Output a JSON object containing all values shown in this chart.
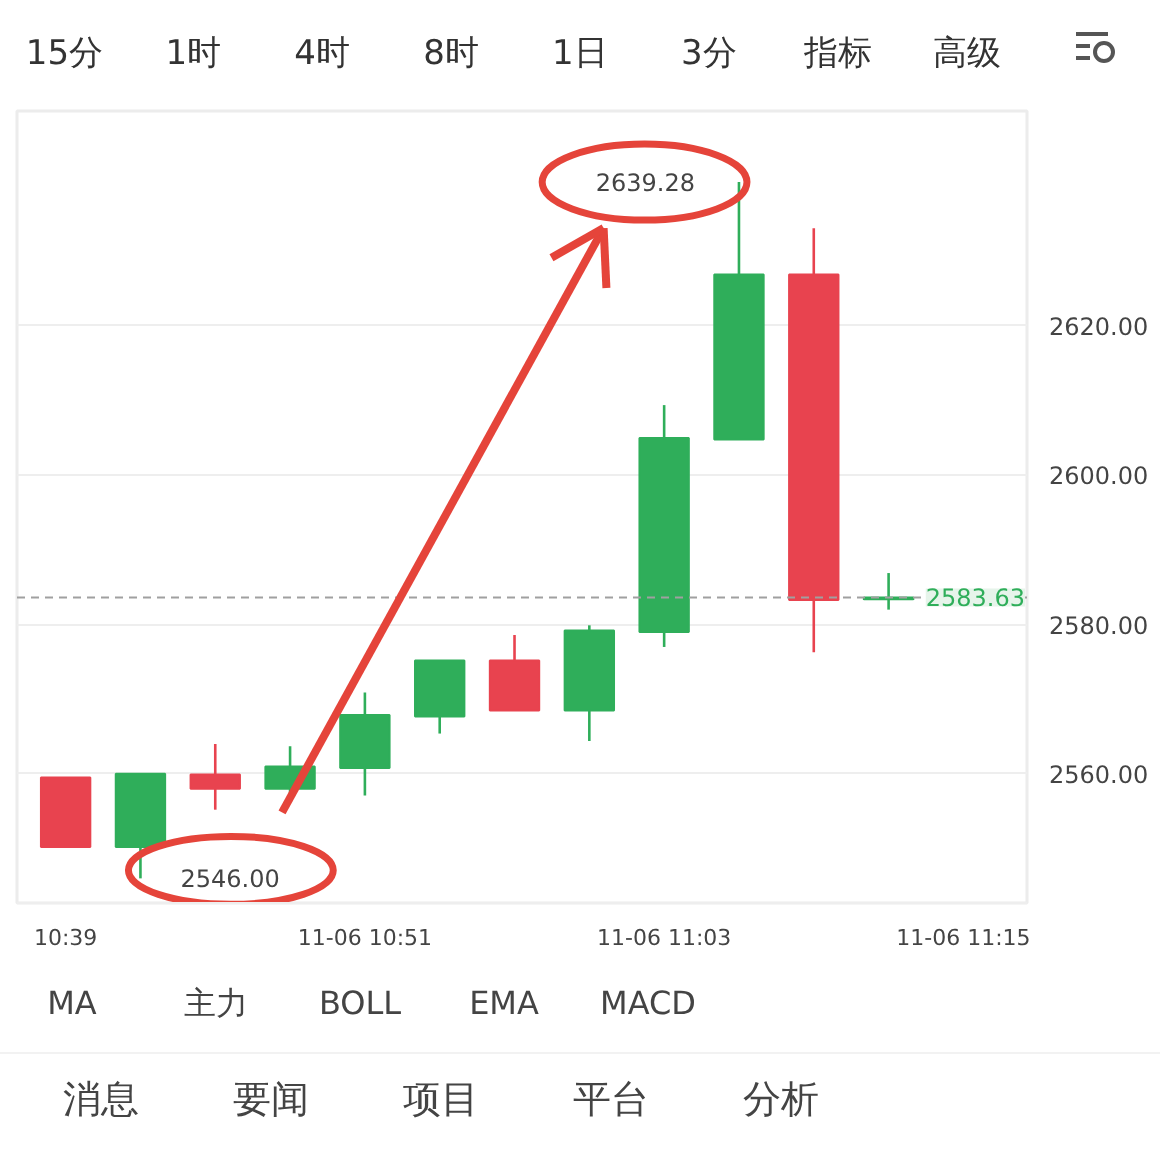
{
  "chart_data": {
    "type": "candlestick",
    "categories": [
      "10:39",
      null,
      null,
      null,
      "11-06 10:51",
      null,
      null,
      null,
      "11-06 11:03",
      null,
      null,
      null,
      "11-06 11:15"
    ],
    "ohlc": [
      [
        2559.5,
        2559.5,
        2550.2,
        2550.2
      ],
      [
        2550.2,
        2560.0,
        2546.0,
        2560.0
      ],
      [
        2559.9,
        2564.0,
        2555.2,
        2558.0
      ],
      [
        2558.0,
        2563.7,
        2557.1,
        2561.0
      ],
      [
        2560.8,
        2570.9,
        2557.1,
        2567.9
      ],
      [
        2567.7,
        2575.2,
        2565.4,
        2575.2
      ],
      [
        2575.2,
        2578.6,
        2568.5,
        2568.5
      ],
      [
        2568.5,
        2579.9,
        2564.4,
        2579.2
      ],
      [
        2579.0,
        2609.4,
        2577.0,
        2605.0
      ],
      [
        2604.8,
        2639.28,
        2604.8,
        2626.9
      ],
      [
        2626.9,
        2633.1,
        2576.3,
        2583.3
      ],
      [
        2583.4,
        2586.9,
        2582.0,
        2583.63
      ],
      null
    ],
    "colors": [
      "#e8434f",
      "#2fae5a",
      "#e8434f",
      "#2fae5a",
      "#2fae5a",
      "#2fae5a",
      "#e8434f",
      "#2fae5a",
      "#2fae5a",
      "#2fae5a",
      "#e8434f",
      "#2fae5a",
      null
    ],
    "ylim": [
      2542.7,
      2648.8
    ],
    "yticks": [
      {
        "value": 2560,
        "label": "2560.00"
      },
      {
        "value": 2580,
        "label": "2580.00"
      },
      {
        "value": 2600,
        "label": "2600.00"
      },
      {
        "value": 2620,
        "label": "2620.00"
      }
    ],
    "grid": "y",
    "ref_lines": [
      {
        "axis": "y",
        "value": 2583.63,
        "label": "2583.63",
        "color": "#a0a0a0",
        "line_style": "dashed"
      }
    ],
    "annotations": [
      "2639.28",
      "2546.00",
      "15分 1时 4时 8时 1日 3分 指标 高级",
      "MA 主力 BOLL EMA MACD",
      "消息 要闻 项目 平台 分析"
    ]
  }
}
